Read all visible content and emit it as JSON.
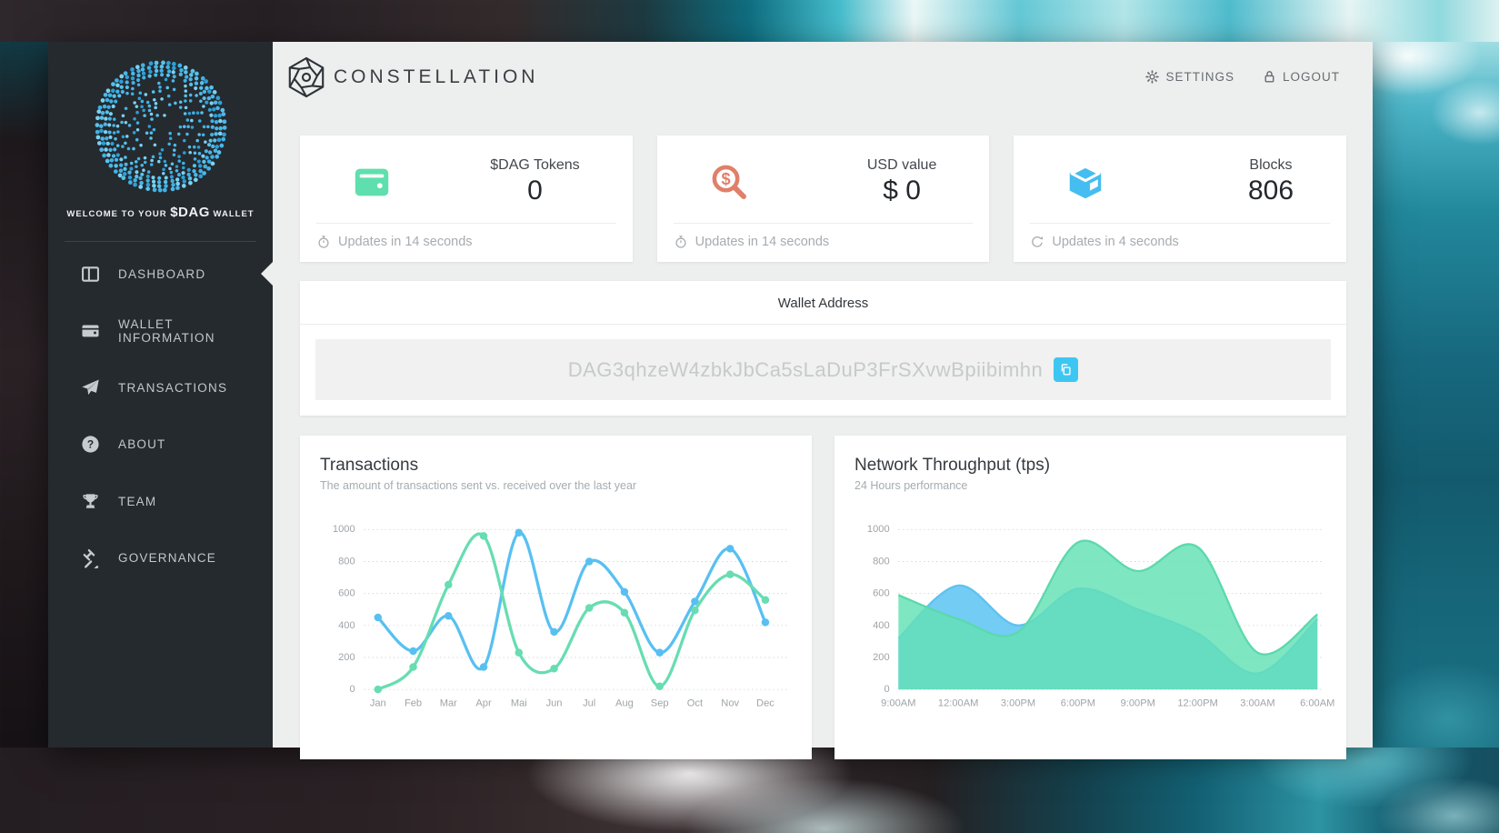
{
  "sidebar": {
    "welcome": {
      "pre": "WELCOME TO YOUR",
      "token": "$DAG",
      "post": "WALLET"
    },
    "items": [
      {
        "label": "DASHBOARD",
        "icon": "dashboard",
        "active": true
      },
      {
        "label": "WALLET INFORMATION",
        "icon": "wallet-outline",
        "active": false
      },
      {
        "label": "TRANSACTIONS",
        "icon": "paper-plane",
        "active": false
      },
      {
        "label": "ABOUT",
        "icon": "question",
        "active": false
      },
      {
        "label": "TEAM",
        "icon": "trophy",
        "active": false
      },
      {
        "label": "GOVERNANCE",
        "icon": "gavel",
        "active": false
      }
    ]
  },
  "header": {
    "brand": "CONSTELLATION",
    "settings_label": "SETTINGS",
    "logout_label": "LOGOUT"
  },
  "stat_cards": [
    {
      "icon": "wallet",
      "icon_color": "#5fdfae",
      "label": "$DAG Tokens",
      "value": "0",
      "footer": "Updates in 14 seconds",
      "footer_icon": "stopwatch"
    },
    {
      "icon": "search-dollar",
      "icon_color": "#e0806a",
      "label": "USD value",
      "value": "$ 0",
      "footer": "Updates in 14 seconds",
      "footer_icon": "stopwatch"
    },
    {
      "icon": "cube",
      "icon_color": "#45bdf0",
      "label": "Blocks",
      "value": "806",
      "footer": "Updates in 4 seconds",
      "footer_icon": "sync"
    }
  ],
  "wallet_address": {
    "title": "Wallet Address",
    "address": "DAG3qhzeW4zbkJbCa5sLaDuP3FrSXvwBpiibimhn"
  },
  "chart_data": [
    {
      "type": "line",
      "title": "Transactions",
      "subtitle": "The amount of transactions sent vs. received over the last year",
      "categories": [
        "Jan",
        "Feb",
        "Mar",
        "Apr",
        "Mai",
        "Jun",
        "Jul",
        "Aug",
        "Sep",
        "Oct",
        "Nov",
        "Dec"
      ],
      "series": [
        {
          "name": "sent",
          "color": "#58c0f1",
          "values": [
            450,
            240,
            460,
            140,
            980,
            360,
            800,
            610,
            230,
            550,
            880,
            420
          ]
        },
        {
          "name": "received",
          "color": "#67ddb1",
          "values": [
            0,
            140,
            655,
            960,
            230,
            130,
            510,
            480,
            20,
            495,
            720,
            560
          ]
        }
      ],
      "ylim": [
        0,
        1000
      ],
      "yticks": [
        0,
        200,
        400,
        600,
        800,
        1000
      ],
      "grid": "dotted-horizontal",
      "legend": "none",
      "points": true
    },
    {
      "type": "area",
      "title": "Network Throughput (tps)",
      "subtitle": "24 Hours performance",
      "categories": [
        "9:00AM",
        "12:00AM",
        "3:00PM",
        "6:00PM",
        "9:00PM",
        "12:00PM",
        "3:00AM",
        "6:00AM"
      ],
      "series": [
        {
          "name": "throughput-blue",
          "color": "#5ec2f0",
          "fill": "rgba(100,198,243,0.9)",
          "values": [
            320,
            650,
            400,
            630,
            500,
            350,
            100,
            440
          ]
        },
        {
          "name": "throughput-green",
          "color": "#5bd9ad",
          "fill": "rgba(99,224,180,0.82)",
          "values": [
            590,
            440,
            360,
            920,
            740,
            890,
            230,
            470
          ]
        }
      ],
      "ylim": [
        0,
        1000
      ],
      "yticks": [
        0,
        200,
        400,
        600,
        800,
        1000
      ],
      "grid": "dotted-horizontal",
      "legend": "none",
      "points": false
    }
  ],
  "theme": {
    "accent_blue": "#3ec6f3",
    "green": "#5fdfae",
    "salmon": "#e0806a",
    "sidebar_bg": "#252a2f",
    "main_bg": "#edefee",
    "logo_dot_color": "#4db6e8"
  }
}
